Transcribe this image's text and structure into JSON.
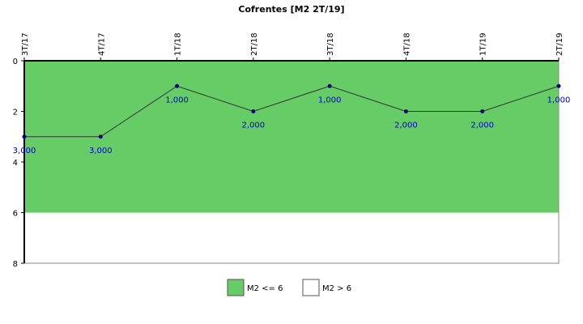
{
  "chart_data": {
    "type": "line",
    "title": "Cofrentes [M2 2T/19]",
    "categories": [
      "3T/17",
      "4T/17",
      "1T/18",
      "2T/18",
      "3T/18",
      "4T/18",
      "1T/19",
      "2T/19"
    ],
    "series": [
      {
        "name": "M2",
        "color": "#333333",
        "marker_color": "#000080",
        "values": [
          3,
          3,
          1,
          2,
          1,
          2,
          2,
          1
        ],
        "value_labels": [
          "3,000",
          "3,000",
          "1,000",
          "2,000",
          "1,000",
          "2,000",
          "2,000",
          "1,000"
        ],
        "label_color": "#0000cc"
      }
    ],
    "bands": [
      {
        "name": "M2 <= 6",
        "from": 0,
        "to": 6,
        "color": "#66cc66"
      },
      {
        "name": "M2 > 6",
        "from": 6,
        "to": 8,
        "color": "#ffffff"
      }
    ],
    "ylim": [
      0,
      8
    ],
    "yticks": [
      0,
      2,
      4,
      6,
      8
    ],
    "y_inverted": true,
    "x_axis_position": "top"
  }
}
